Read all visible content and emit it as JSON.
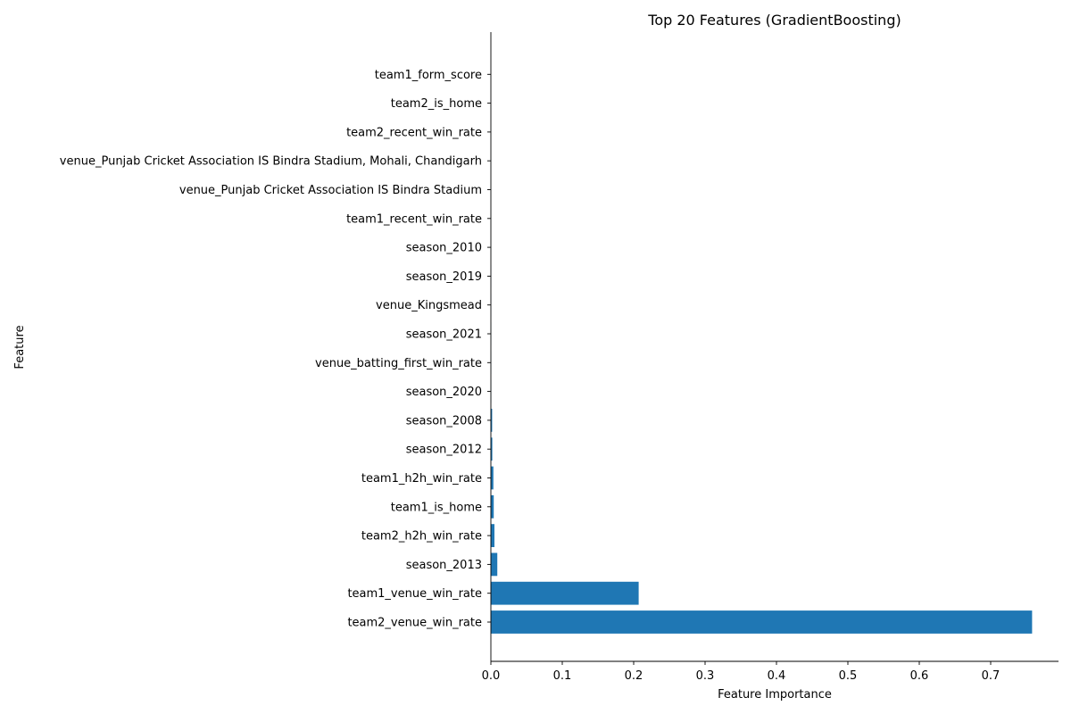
{
  "chart_data": {
    "type": "bar",
    "orientation": "horizontal",
    "title": "Top 20 Features (GradientBoosting)",
    "xlabel": "Feature Importance",
    "ylabel": "Feature",
    "xlim": [
      0,
      0.795
    ],
    "xticks": [
      0.0,
      0.1,
      0.2,
      0.3,
      0.4,
      0.5,
      0.6,
      0.7
    ],
    "xtick_labels": [
      "0.0",
      "0.1",
      "0.2",
      "0.3",
      "0.4",
      "0.5",
      "0.6",
      "0.7"
    ],
    "grid": false,
    "bar_color": "#1f77b4",
    "categories": [
      "team2_venue_win_rate",
      "team1_venue_win_rate",
      "season_2013",
      "team2_h2h_win_rate",
      "team1_is_home",
      "team1_h2h_win_rate",
      "season_2012",
      "season_2008",
      "season_2020",
      "venue_batting_first_win_rate",
      "season_2021",
      "venue_Kingsmead",
      "season_2019",
      "season_2010",
      "team1_recent_win_rate",
      "venue_Punjab Cricket Association IS Bindra Stadium",
      "venue_Punjab Cricket Association IS Bindra Stadium, Mohali, Chandigarh",
      "team2_recent_win_rate",
      "team2_is_home",
      "team1_form_score"
    ],
    "values": [
      0.758,
      0.207,
      0.009,
      0.005,
      0.004,
      0.0035,
      0.002,
      0.0018,
      0.0004,
      0.0003,
      0.0003,
      0.0002,
      0.0002,
      0.0001,
      0.0001,
      0.0001,
      0.0001,
      0.0001,
      5e-05,
      5e-05
    ]
  }
}
